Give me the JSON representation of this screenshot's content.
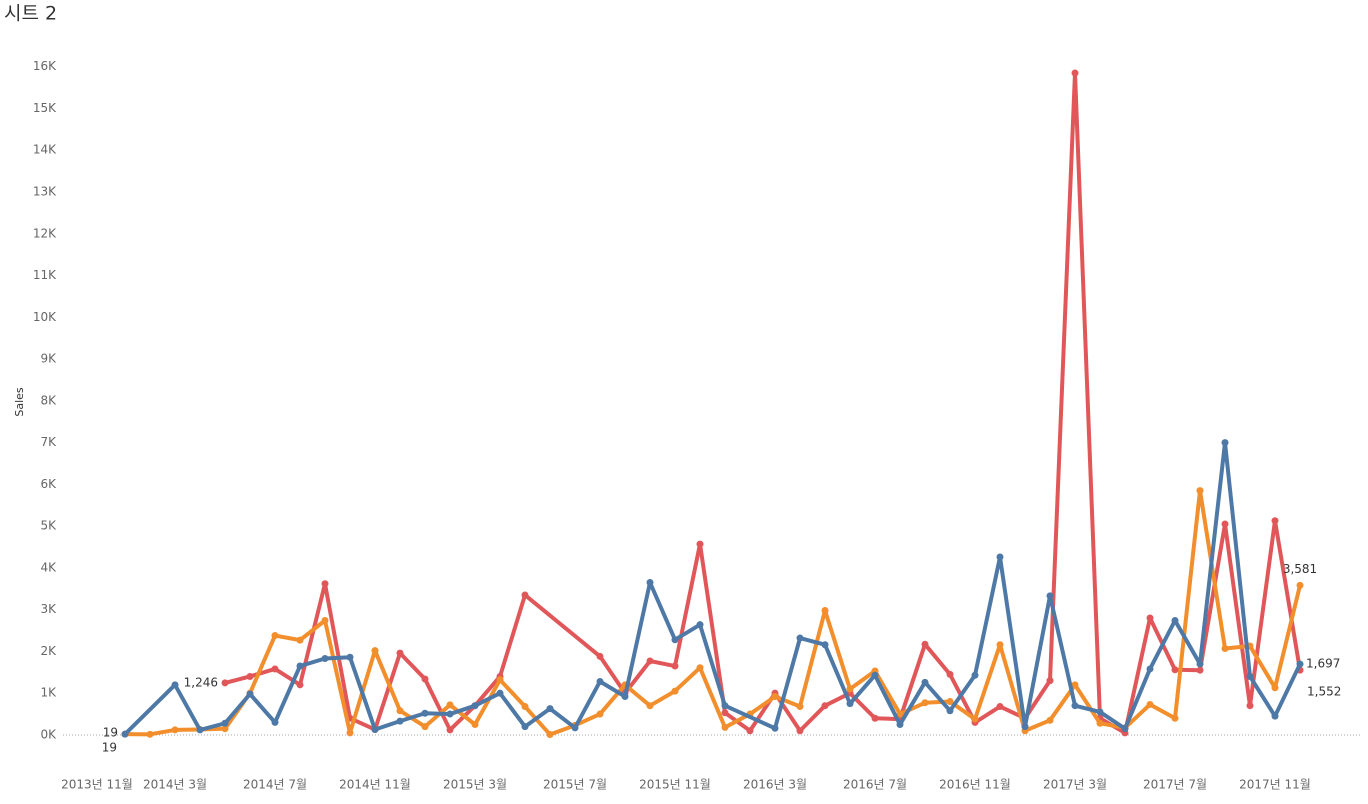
{
  "chart_data": {
    "type": "line",
    "title": "시트 2",
    "y_label": "Sales",
    "xlim": [
      "2013-11",
      "2018-02"
    ],
    "xticks": [
      {
        "value": "2013-11",
        "label": "2013년 11월"
      },
      {
        "value": "2014-03",
        "label": "2014년 3월"
      },
      {
        "value": "2014-07",
        "label": "2014년 7월"
      },
      {
        "value": "2014-11",
        "label": "2014년 11월"
      },
      {
        "value": "2015-03",
        "label": "2015년 3월"
      },
      {
        "value": "2015-07",
        "label": "2015년 7월"
      },
      {
        "value": "2015-11",
        "label": "2015년 11월"
      },
      {
        "value": "2016-03",
        "label": "2016년 3월"
      },
      {
        "value": "2016-07",
        "label": "2016년 7월"
      },
      {
        "value": "2016-11",
        "label": "2016년 11월"
      },
      {
        "value": "2017-03",
        "label": "2017년 3월"
      },
      {
        "value": "2017-07",
        "label": "2017년 7월"
      },
      {
        "value": "2017-11",
        "label": "2017년 11월"
      }
    ],
    "ylim": [
      -600,
      16400
    ],
    "yticks": [
      {
        "value": 0,
        "label": "0K"
      },
      {
        "value": 1000,
        "label": "1K"
      },
      {
        "value": 2000,
        "label": "2K"
      },
      {
        "value": 3000,
        "label": "3K"
      },
      {
        "value": 4000,
        "label": "4K"
      },
      {
        "value": 5000,
        "label": "5K"
      },
      {
        "value": 6000,
        "label": "6K"
      },
      {
        "value": 7000,
        "label": "7K"
      },
      {
        "value": 8000,
        "label": "8K"
      },
      {
        "value": 9000,
        "label": "9K"
      },
      {
        "value": 10000,
        "label": "10K"
      },
      {
        "value": 11000,
        "label": "11K"
      },
      {
        "value": 12000,
        "label": "12K"
      },
      {
        "value": 13000,
        "label": "13K"
      },
      {
        "value": 14000,
        "label": "14K"
      },
      {
        "value": 15000,
        "label": "15K"
      },
      {
        "value": 16000,
        "label": "16K"
      }
    ],
    "series": [
      {
        "color": "#e15759",
        "x": [
          "2014-05",
          "2014-06",
          "2014-07",
          "2014-08",
          "2014-09",
          "2014-10",
          "2014-11",
          "2014-12",
          "2015-01",
          "2015-02",
          "2015-03",
          "2015-04",
          "2015-05",
          "2015-08",
          "2015-09",
          "2015-10",
          "2015-11",
          "2015-12",
          "2016-01",
          "2016-02",
          "2016-03",
          "2016-04",
          "2016-05",
          "2016-06",
          "2016-07",
          "2016-08",
          "2016-09",
          "2016-10",
          "2016-11",
          "2016-12",
          "2017-01",
          "2017-02",
          "2017-03",
          "2017-04",
          "2017-05",
          "2017-06",
          "2017-07",
          "2017-08",
          "2017-09",
          "2017-10",
          "2017-11",
          "2017-12"
        ],
        "values": [
          1246,
          1400,
          1580,
          1200,
          3620,
          400,
          130,
          1960,
          1340,
          120,
          700,
          1400,
          3350,
          1880,
          1000,
          1770,
          1650,
          4570,
          530,
          100,
          1000,
          100,
          700,
          1000,
          400,
          380,
          2170,
          1450,
          300,
          680,
          400,
          1300,
          15850,
          400,
          50,
          2800,
          1560,
          1550,
          5050,
          700,
          5130,
          1552
        ],
        "value_labels": [
          "1,246",
          null,
          null,
          null,
          null,
          null,
          null,
          null,
          null,
          null,
          null,
          null,
          null,
          null,
          null,
          null,
          null,
          null,
          null,
          null,
          null,
          null,
          null,
          null,
          null,
          null,
          null,
          null,
          null,
          null,
          null,
          null,
          null,
          null,
          null,
          null,
          null,
          null,
          null,
          null,
          null,
          "1,552"
        ]
      },
      {
        "color": "#f28e2b",
        "x": [
          "2014-01",
          "2014-02",
          "2014-03",
          "2014-04",
          "2014-05",
          "2014-06",
          "2014-07",
          "2014-08",
          "2014-09",
          "2014-10",
          "2014-11",
          "2014-12",
          "2015-01",
          "2015-02",
          "2015-03",
          "2015-04",
          "2015-05",
          "2015-06",
          "2015-07",
          "2015-08",
          "2015-09",
          "2015-10",
          "2015-11",
          "2015-12",
          "2016-01",
          "2016-02",
          "2016-03",
          "2016-04",
          "2016-05",
          "2016-06",
          "2016-07",
          "2016-08",
          "2016-09",
          "2016-10",
          "2016-11",
          "2016-12",
          "2017-01",
          "2017-02",
          "2017-03",
          "2017-04",
          "2017-05",
          "2017-06",
          "2017-07",
          "2017-08",
          "2017-09",
          "2017-10",
          "2017-11",
          "2017-12"
        ],
        "values": [
          19,
          15,
          120,
          130,
          150,
          1000,
          2380,
          2270,
          2740,
          50,
          2020,
          580,
          200,
          720,
          250,
          1320,
          680,
          10,
          230,
          500,
          1200,
          700,
          1050,
          1610,
          180,
          500,
          920,
          680,
          2980,
          1100,
          1530,
          500,
          770,
          800,
          380,
          2160,
          100,
          350,
          1200,
          280,
          170,
          730,
          400,
          5850,
          2070,
          2130,
          1130,
          3581
        ],
        "value_labels": [
          "19",
          null,
          null,
          null,
          null,
          null,
          null,
          null,
          null,
          null,
          null,
          null,
          null,
          null,
          null,
          null,
          null,
          null,
          null,
          null,
          null,
          null,
          null,
          null,
          null,
          null,
          null,
          null,
          null,
          null,
          null,
          null,
          null,
          null,
          null,
          null,
          null,
          null,
          null,
          null,
          null,
          null,
          null,
          null,
          null,
          null,
          null,
          "3,581"
        ]
      },
      {
        "color": "#4e79a7",
        "x": [
          "2014-01",
          "2014-03",
          "2014-04",
          "2014-05",
          "2014-06",
          "2014-07",
          "2014-08",
          "2014-09",
          "2014-10",
          "2014-11",
          "2014-12",
          "2015-01",
          "2015-02",
          "2015-03",
          "2015-04",
          "2015-05",
          "2015-06",
          "2015-07",
          "2015-08",
          "2015-09",
          "2015-10",
          "2015-11",
          "2015-12",
          "2016-01",
          "2016-03",
          "2016-04",
          "2016-05",
          "2016-06",
          "2016-07",
          "2016-08",
          "2016-09",
          "2016-10",
          "2016-11",
          "2016-12",
          "2017-01",
          "2017-02",
          "2017-03",
          "2017-04",
          "2017-05",
          "2017-06",
          "2017-07",
          "2017-08",
          "2017-09",
          "2017-10",
          "2017-11",
          "2017-12"
        ],
        "values": [
          19,
          1200,
          120,
          280,
          980,
          300,
          1650,
          1830,
          1860,
          130,
          330,
          520,
          500,
          700,
          1000,
          200,
          630,
          170,
          1280,
          920,
          3650,
          2280,
          2640,
          700,
          160,
          2320,
          2160,
          750,
          1430,
          250,
          1260,
          580,
          1430,
          4260,
          200,
          3330,
          700,
          550,
          150,
          1580,
          2740,
          1700,
          7000,
          1400,
          450,
          1697
        ],
        "value_labels": [
          "19",
          null,
          null,
          null,
          null,
          null,
          null,
          null,
          null,
          null,
          null,
          null,
          null,
          null,
          null,
          null,
          null,
          null,
          null,
          null,
          null,
          null,
          null,
          null,
          null,
          null,
          null,
          null,
          null,
          null,
          null,
          null,
          null,
          null,
          null,
          null,
          null,
          null,
          null,
          null,
          null,
          null,
          null,
          null,
          null,
          "1,697"
        ]
      }
    ]
  }
}
